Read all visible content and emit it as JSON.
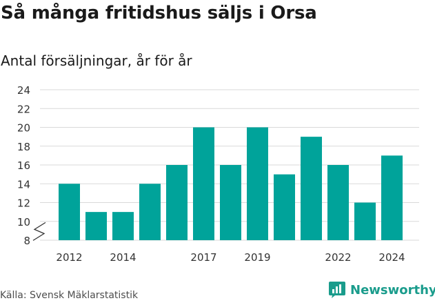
{
  "header": {
    "title": "Så många fritidshus säljs i Orsa",
    "subtitle": "Antal försäljningar, år för år"
  },
  "footer": {
    "source": "Källa: Svensk Mäklarstatistik",
    "brand": "Newsworthy"
  },
  "colors": {
    "bar": "#00a39a",
    "grid": "#d9d9d9",
    "brand": "#1a9c8c"
  },
  "chart_data": {
    "type": "bar",
    "title": "Så många fritidshus säljs i Orsa",
    "subtitle": "Antal försäljningar, år för år",
    "categories": [
      "2012",
      "2013",
      "2014",
      "2015",
      "2016",
      "2017",
      "2018",
      "2019",
      "2020",
      "2021",
      "2022",
      "2023",
      "2024"
    ],
    "values": [
      14,
      11,
      11,
      14,
      16,
      20,
      16,
      20,
      15,
      19,
      16,
      12,
      17
    ],
    "x_tick_labels": [
      "2012",
      "2014",
      "2017",
      "2019",
      "2022",
      "2024"
    ],
    "y_ticks": [
      8,
      10,
      12,
      14,
      16,
      18,
      20,
      22,
      24
    ],
    "ylim": [
      8,
      24
    ],
    "y_axis_break": true,
    "grid": true,
    "legend": "none",
    "xlabel": "",
    "ylabel": ""
  }
}
